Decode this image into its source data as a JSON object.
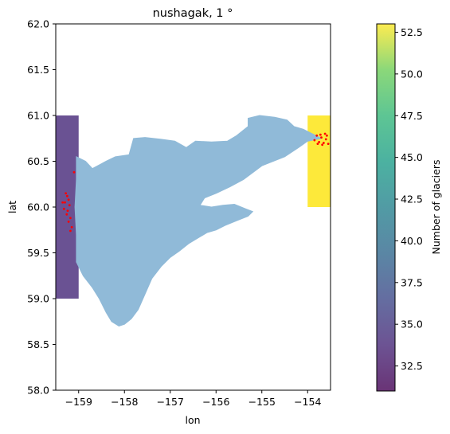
{
  "chart_data": {
    "type": "map",
    "title": "nushagak, 1 °",
    "xlabel": "lon",
    "ylabel": "lat",
    "xlim": [
      -159.5,
      -153.5
    ],
    "ylim": [
      58.0,
      62.0
    ],
    "xticks": [
      -159,
      -158,
      -157,
      -156,
      -155,
      -154
    ],
    "xtick_labels": [
      "−159",
      "−158",
      "−157",
      "−156",
      "−155",
      "−154"
    ],
    "yticks": [
      58.0,
      58.5,
      59.0,
      59.5,
      60.0,
      60.5,
      61.0,
      61.5,
      62.0
    ],
    "ytick_labels": [
      "58.0",
      "58.5",
      "59.0",
      "59.5",
      "60.0",
      "60.5",
      "61.0",
      "61.5",
      "62.0"
    ],
    "basin_color": "#90bad8",
    "grid": false,
    "cells": [
      {
        "lon": [
          -160,
          -159
        ],
        "lat": [
          59,
          61
        ],
        "count": 34,
        "color": "#5a3f87"
      },
      {
        "lon": [
          -154,
          -153
        ],
        "lat": [
          60,
          61
        ],
        "count": 53,
        "color": "#fde725"
      }
    ],
    "glacier_points": [
      [
        -159.3,
        60.05
      ],
      [
        -159.25,
        60.12
      ],
      [
        -159.22,
        60.08
      ],
      [
        -159.28,
        60.15
      ],
      [
        -159.2,
        60.02
      ],
      [
        -159.32,
        59.98
      ],
      [
        -159.18,
        59.88
      ],
      [
        -159.22,
        59.84
      ],
      [
        -159.15,
        59.78
      ],
      [
        -159.18,
        59.74
      ],
      [
        -159.26,
        59.92
      ],
      [
        -159.1,
        60.38
      ],
      [
        -159.35,
        60.05
      ],
      [
        -159.24,
        59.96
      ],
      [
        -153.85,
        60.73
      ],
      [
        -153.8,
        60.78
      ],
      [
        -153.75,
        60.71
      ],
      [
        -153.7,
        60.76
      ],
      [
        -153.65,
        60.7
      ],
      [
        -153.6,
        60.74
      ],
      [
        -153.58,
        60.78
      ],
      [
        -153.55,
        60.69
      ],
      [
        -153.68,
        60.68
      ],
      [
        -153.78,
        60.69
      ],
      [
        -153.62,
        60.8
      ],
      [
        -153.72,
        60.79
      ]
    ],
    "colorbar": {
      "label": "Number of glaciers",
      "range": [
        31,
        53
      ],
      "ticks": [
        32.5,
        35.0,
        37.5,
        40.0,
        42.5,
        45.0,
        47.5,
        50.0,
        52.5
      ],
      "tick_labels": [
        "32.5",
        "35.0",
        "37.5",
        "40.0",
        "42.5",
        "45.0",
        "47.5",
        "50.0",
        "52.5"
      ],
      "colormap": "viridis"
    },
    "basin_outline": [
      [
        -159.05,
        60.55
      ],
      [
        -158.85,
        60.5
      ],
      [
        -158.7,
        60.42
      ],
      [
        -158.4,
        60.5
      ],
      [
        -158.2,
        60.55
      ],
      [
        -157.9,
        60.57
      ],
      [
        -157.8,
        60.75
      ],
      [
        -157.55,
        60.76
      ],
      [
        -157.2,
        60.74
      ],
      [
        -156.9,
        60.72
      ],
      [
        -156.65,
        60.65
      ],
      [
        -156.45,
        60.72
      ],
      [
        -156.1,
        60.71
      ],
      [
        -155.75,
        60.72
      ],
      [
        -155.55,
        60.78
      ],
      [
        -155.3,
        60.88
      ],
      [
        -155.3,
        60.97
      ],
      [
        -155.05,
        61.0
      ],
      [
        -154.72,
        60.98
      ],
      [
        -154.45,
        60.95
      ],
      [
        -154.3,
        60.88
      ],
      [
        -154.1,
        60.85
      ],
      [
        -153.9,
        60.8
      ],
      [
        -153.7,
        60.75
      ],
      [
        -154.0,
        60.72
      ],
      [
        -154.2,
        60.65
      ],
      [
        -154.5,
        60.55
      ],
      [
        -155.0,
        60.45
      ],
      [
        -155.4,
        60.3
      ],
      [
        -155.7,
        60.22
      ],
      [
        -156.0,
        60.15
      ],
      [
        -156.25,
        60.1
      ],
      [
        -156.35,
        60.02
      ],
      [
        -156.1,
        60.0
      ],
      [
        -155.85,
        60.02
      ],
      [
        -155.6,
        60.03
      ],
      [
        -155.35,
        59.98
      ],
      [
        -155.2,
        59.95
      ],
      [
        -155.3,
        59.9
      ],
      [
        -155.55,
        59.85
      ],
      [
        -155.8,
        59.8
      ],
      [
        -156.0,
        59.75
      ],
      [
        -156.2,
        59.72
      ],
      [
        -156.4,
        59.66
      ],
      [
        -156.6,
        59.6
      ],
      [
        -156.8,
        59.52
      ],
      [
        -157.0,
        59.45
      ],
      [
        -157.2,
        59.35
      ],
      [
        -157.4,
        59.22
      ],
      [
        -157.55,
        59.05
      ],
      [
        -157.7,
        58.88
      ],
      [
        -157.85,
        58.78
      ],
      [
        -158.0,
        58.72
      ],
      [
        -158.12,
        58.7
      ],
      [
        -158.28,
        58.75
      ],
      [
        -158.4,
        58.85
      ],
      [
        -158.55,
        59.0
      ],
      [
        -158.7,
        59.12
      ],
      [
        -158.9,
        59.25
      ],
      [
        -159.05,
        59.4
      ],
      [
        -159.05,
        59.7
      ],
      [
        -159.08,
        60.0
      ],
      [
        -159.05,
        60.3
      ]
    ]
  }
}
